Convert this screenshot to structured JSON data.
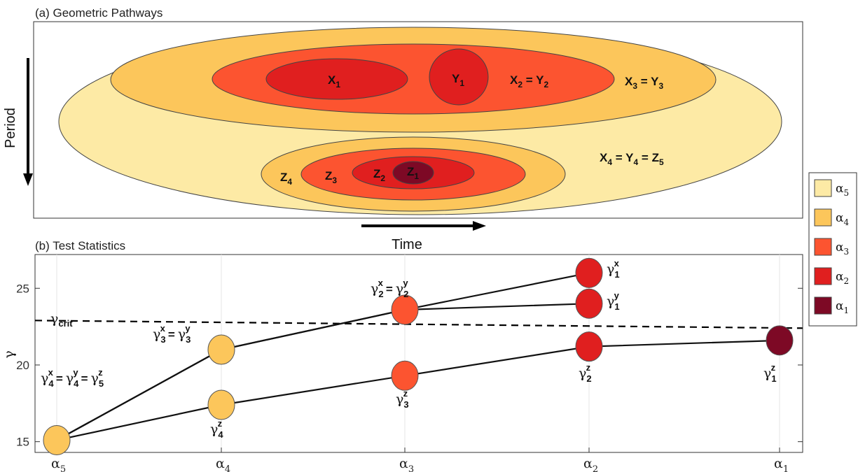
{
  "panel_a": {
    "title": "(a) Geometric Pathways",
    "y_arrow_label": "Period",
    "x_arrow_label": "Time",
    "regions": [
      {
        "main": "X",
        "sub": "1"
      },
      {
        "main": "Y",
        "sub": "1"
      },
      {
        "main": "X",
        "sub": "2",
        "eq": "=",
        "main2": "Y",
        "sub2": "2"
      },
      {
        "main": "X",
        "sub": "3",
        "eq": "=",
        "main2": "Y",
        "sub2": "3"
      },
      {
        "main": "X",
        "sub": "4",
        "eq": "=",
        "main2": "Y",
        "sub2": "4",
        "eq2": "=",
        "main3": "Z",
        "sub3": "5"
      },
      {
        "main": "Z",
        "sub": "4"
      },
      {
        "main": "Z",
        "sub": "3"
      },
      {
        "main": "Z",
        "sub": "2"
      },
      {
        "main": "Z",
        "sub": "1"
      }
    ]
  },
  "legend": {
    "items": [
      {
        "symbol": "α",
        "sub": "5",
        "color": "#fdeaa5"
      },
      {
        "symbol": "α",
        "sub": "4",
        "color": "#fcc65b"
      },
      {
        "symbol": "α",
        "sub": "3",
        "color": "#fc5430"
      },
      {
        "symbol": "α",
        "sub": "2",
        "color": "#e01f1f"
      },
      {
        "symbol": "α",
        "sub": "1",
        "color": "#7d0925"
      }
    ]
  },
  "panel_b": {
    "title": "(b) Test Statistics",
    "ylabel": "γ",
    "crit_label": "γ",
    "crit_sub": "crit"
  },
  "chart_data": {
    "type": "line",
    "title": "(b) Test Statistics",
    "xlabel": "",
    "ylabel": "γ",
    "categories": [
      "α5",
      "α4",
      "α3",
      "α2",
      "α1"
    ],
    "y_ticks": [
      15,
      20,
      25
    ],
    "ylim": [
      14.3,
      27.2
    ],
    "grid": "vertical only",
    "critical_line": {
      "label": "γcrit",
      "y_start": 22.9,
      "y_end": 22.4,
      "style": "dashed"
    },
    "series": [
      {
        "x": [
          "α5",
          "α4",
          "α3",
          "α2"
        ],
        "values": [
          15.1,
          21.0,
          23.6,
          26.0
        ]
      },
      {
        "x": [
          "α5",
          "α4",
          "α3",
          "α2"
        ],
        "values": [
          15.1,
          21.0,
          23.6,
          24.0
        ]
      },
      {
        "x": [
          "α5",
          "α4",
          "α3",
          "α2",
          "α1"
        ],
        "values": [
          15.1,
          17.4,
          19.3,
          21.2,
          21.6
        ]
      }
    ],
    "points": [
      {
        "x": "α5",
        "y": 15.1,
        "color": "#fcc65b",
        "label": "γ4x = γ4y = γ5z"
      },
      {
        "x": "α4",
        "y": 21.0,
        "color": "#fcc65b",
        "label": "γ3x = γ3y"
      },
      {
        "x": "α4",
        "y": 17.4,
        "color": "#fcc65b",
        "label": "γ4z"
      },
      {
        "x": "α3",
        "y": 23.6,
        "color": "#fc5430",
        "label": "γ2x = γ2y"
      },
      {
        "x": "α3",
        "y": 19.3,
        "color": "#fc5430",
        "label": "γ3z"
      },
      {
        "x": "α2",
        "y": 26.0,
        "color": "#e01f1f",
        "label": "γ1x"
      },
      {
        "x": "α2",
        "y": 24.0,
        "color": "#e01f1f",
        "label": "γ1y"
      },
      {
        "x": "α2",
        "y": 21.2,
        "color": "#e01f1f",
        "label": "γ2z"
      },
      {
        "x": "α1",
        "y": 21.6,
        "color": "#7d0925",
        "label": "γ1z"
      }
    ]
  }
}
